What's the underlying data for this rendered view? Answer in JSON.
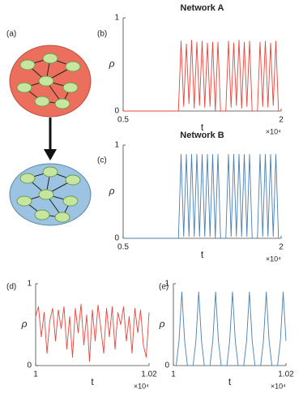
{
  "diagram": {
    "panel_label": "(a)"
  },
  "chart_data": [
    {
      "type": "line",
      "panel_label": "(b)",
      "title": "Network A",
      "x_label": "t",
      "y_label": "ρ",
      "x_scale_label": "×10⁴",
      "x": [
        0.5,
        0.525,
        0.55,
        0.575,
        0.6,
        0.625,
        0.65,
        0.675,
        0.7,
        0.725,
        0.75,
        0.775,
        0.8,
        0.825,
        0.85,
        0.875,
        0.9,
        0.925,
        0.95,
        0.975,
        1.0,
        1.025,
        1.05,
        1.075,
        1.1,
        1.125,
        1.15,
        1.175,
        1.2,
        1.225,
        1.25,
        1.275,
        1.3,
        1.325,
        1.35,
        1.375,
        1.4,
        1.425,
        1.45,
        1.475,
        1.5,
        1.525,
        1.55,
        1.575,
        1.6,
        1.625,
        1.65,
        1.675,
        1.7,
        1.725,
        1.75,
        1.775,
        1.8,
        1.825,
        1.85,
        1.875,
        1.9,
        1.925,
        1.95,
        1.975,
        2.0
      ],
      "series": [
        {
          "color": "#e8453c",
          "values": [
            0,
            0,
            0,
            0,
            0,
            0,
            0,
            0,
            0,
            0,
            0,
            0,
            0,
            0,
            0,
            0,
            0,
            0,
            0,
            0,
            0,
            0,
            0.75,
            0.05,
            0.72,
            0.08,
            0.76,
            0.03,
            0.74,
            0.06,
            0.75,
            0.04,
            0.73,
            0.05,
            0.74,
            0,
            0.74,
            0,
            0,
            0,
            0.75,
            0.04,
            0.73,
            0.06,
            0.76,
            0.03,
            0.74,
            0.05,
            0.75,
            0,
            0,
            0,
            0.74,
            0.05,
            0.75,
            0.04,
            0.73,
            0.06,
            0.75,
            0,
            0
          ]
        }
      ],
      "xlim": [
        0.5,
        2
      ],
      "xticks": [
        0.5,
        2
      ],
      "ylim": [
        0,
        1
      ],
      "yticks": [
        0,
        1
      ]
    },
    {
      "type": "line",
      "panel_label": "(c)",
      "title": "Network B",
      "x_label": "t",
      "y_label": "ρ",
      "x_scale_label": "×10⁴",
      "x": [
        0.5,
        0.525,
        0.55,
        0.575,
        0.6,
        0.625,
        0.65,
        0.675,
        0.7,
        0.725,
        0.75,
        0.775,
        0.8,
        0.825,
        0.85,
        0.875,
        0.9,
        0.925,
        0.95,
        0.975,
        1.0,
        1.025,
        1.05,
        1.075,
        1.1,
        1.125,
        1.15,
        1.175,
        1.2,
        1.225,
        1.25,
        1.275,
        1.3,
        1.325,
        1.35,
        1.375,
        1.4,
        1.425,
        1.45,
        1.475,
        1.5,
        1.525,
        1.55,
        1.575,
        1.6,
        1.625,
        1.65,
        1.675,
        1.7,
        1.725,
        1.75,
        1.775,
        1.8,
        1.825,
        1.85,
        1.875,
        1.9,
        1.925,
        1.95,
        1.975,
        2.0
      ],
      "series": [
        {
          "color": "#4a7fb0",
          "values": [
            0,
            0,
            0,
            0,
            0,
            0,
            0,
            0,
            0,
            0,
            0,
            0,
            0,
            0,
            0,
            0,
            0,
            0,
            0,
            0,
            0,
            0,
            0.9,
            0.02,
            0.9,
            0.02,
            0.9,
            0.02,
            0.9,
            0.02,
            0.9,
            0.02,
            0.9,
            0.02,
            0.9,
            0,
            0.9,
            0,
            0,
            0,
            0.9,
            0.02,
            0.9,
            0.02,
            0.9,
            0.02,
            0.9,
            0.02,
            0.9,
            0,
            0,
            0,
            0.9,
            0.02,
            0.9,
            0.02,
            0.9,
            0.02,
            0.9,
            0,
            0
          ]
        }
      ],
      "xlim": [
        0.5,
        2
      ],
      "xticks": [
        0.5,
        2
      ],
      "ylim": [
        0,
        1
      ],
      "yticks": [
        0,
        1
      ]
    },
    {
      "type": "line",
      "panel_label": "(d)",
      "x_label": "t",
      "y_label": "ρ",
      "x_scale_label": "×10⁴",
      "x": [
        1.0,
        1.0005,
        1.001,
        1.0015,
        1.002,
        1.0025,
        1.003,
        1.0035,
        1.004,
        1.0045,
        1.005,
        1.0055,
        1.006,
        1.0065,
        1.007,
        1.0075,
        1.008,
        1.0085,
        1.009,
        1.0095,
        1.01,
        1.0105,
        1.011,
        1.0115,
        1.012,
        1.0125,
        1.013,
        1.0135,
        1.014,
        1.0145,
        1.015,
        1.0155,
        1.016,
        1.0165,
        1.017,
        1.0175,
        1.018,
        1.0185,
        1.019,
        1.0195,
        1.02
      ],
      "series": [
        {
          "color": "#e8453c",
          "values": [
            0.6,
            0.72,
            0.35,
            0.65,
            0.15,
            0.55,
            0.7,
            0.3,
            0.68,
            0.45,
            0.72,
            0.2,
            0.6,
            0.1,
            0.7,
            0.4,
            0.75,
            0.25,
            0.62,
            0.05,
            0.68,
            0.3,
            0.74,
            0.45,
            0.15,
            0.7,
            0.35,
            0.72,
            0.2,
            0.65,
            0.5,
            0.72,
            0.3,
            0.6,
            0.15,
            0.7,
            0.4,
            0.68,
            0.25,
            0.1,
            0.65
          ]
        }
      ],
      "xlim": [
        1,
        1.02
      ],
      "xticks": [
        1,
        1.02
      ],
      "ylim": [
        0,
        1
      ],
      "yticks": [
        0,
        1
      ]
    },
    {
      "type": "line",
      "panel_label": "(e)",
      "x_label": "t",
      "y_label": "ρ",
      "x_scale_label": "×10⁴",
      "x": [
        1.0,
        1.0005,
        1.001,
        1.0015,
        1.002,
        1.0025,
        1.003,
        1.0035,
        1.004,
        1.0045,
        1.005,
        1.0055,
        1.006,
        1.0065,
        1.007,
        1.0075,
        1.008,
        1.0085,
        1.009,
        1.0095,
        1.01,
        1.0105,
        1.011,
        1.0115,
        1.012,
        1.0125,
        1.013,
        1.0135,
        1.014,
        1.0145,
        1.015,
        1.0155,
        1.016,
        1.0165,
        1.017,
        1.0175,
        1.018,
        1.0185,
        1.019,
        1.0195,
        1.02
      ],
      "series": [
        {
          "color": "#4a7fb0",
          "values": [
            0,
            0,
            0.3,
            0.9,
            0.3,
            0,
            0,
            0,
            0.3,
            0.9,
            0.3,
            0,
            0,
            0,
            0.3,
            0.9,
            0.3,
            0,
            0,
            0,
            0.3,
            0.9,
            0.3,
            0,
            0,
            0,
            0.3,
            0.9,
            0.3,
            0,
            0,
            0,
            0.3,
            0.9,
            0.3,
            0,
            0,
            0,
            0.3,
            0.9,
            0.3
          ]
        }
      ],
      "xlim": [
        1,
        1.02
      ],
      "xticks": [
        1,
        1.02
      ],
      "ylim": [
        0,
        1
      ],
      "yticks": [
        0,
        1
      ]
    }
  ]
}
